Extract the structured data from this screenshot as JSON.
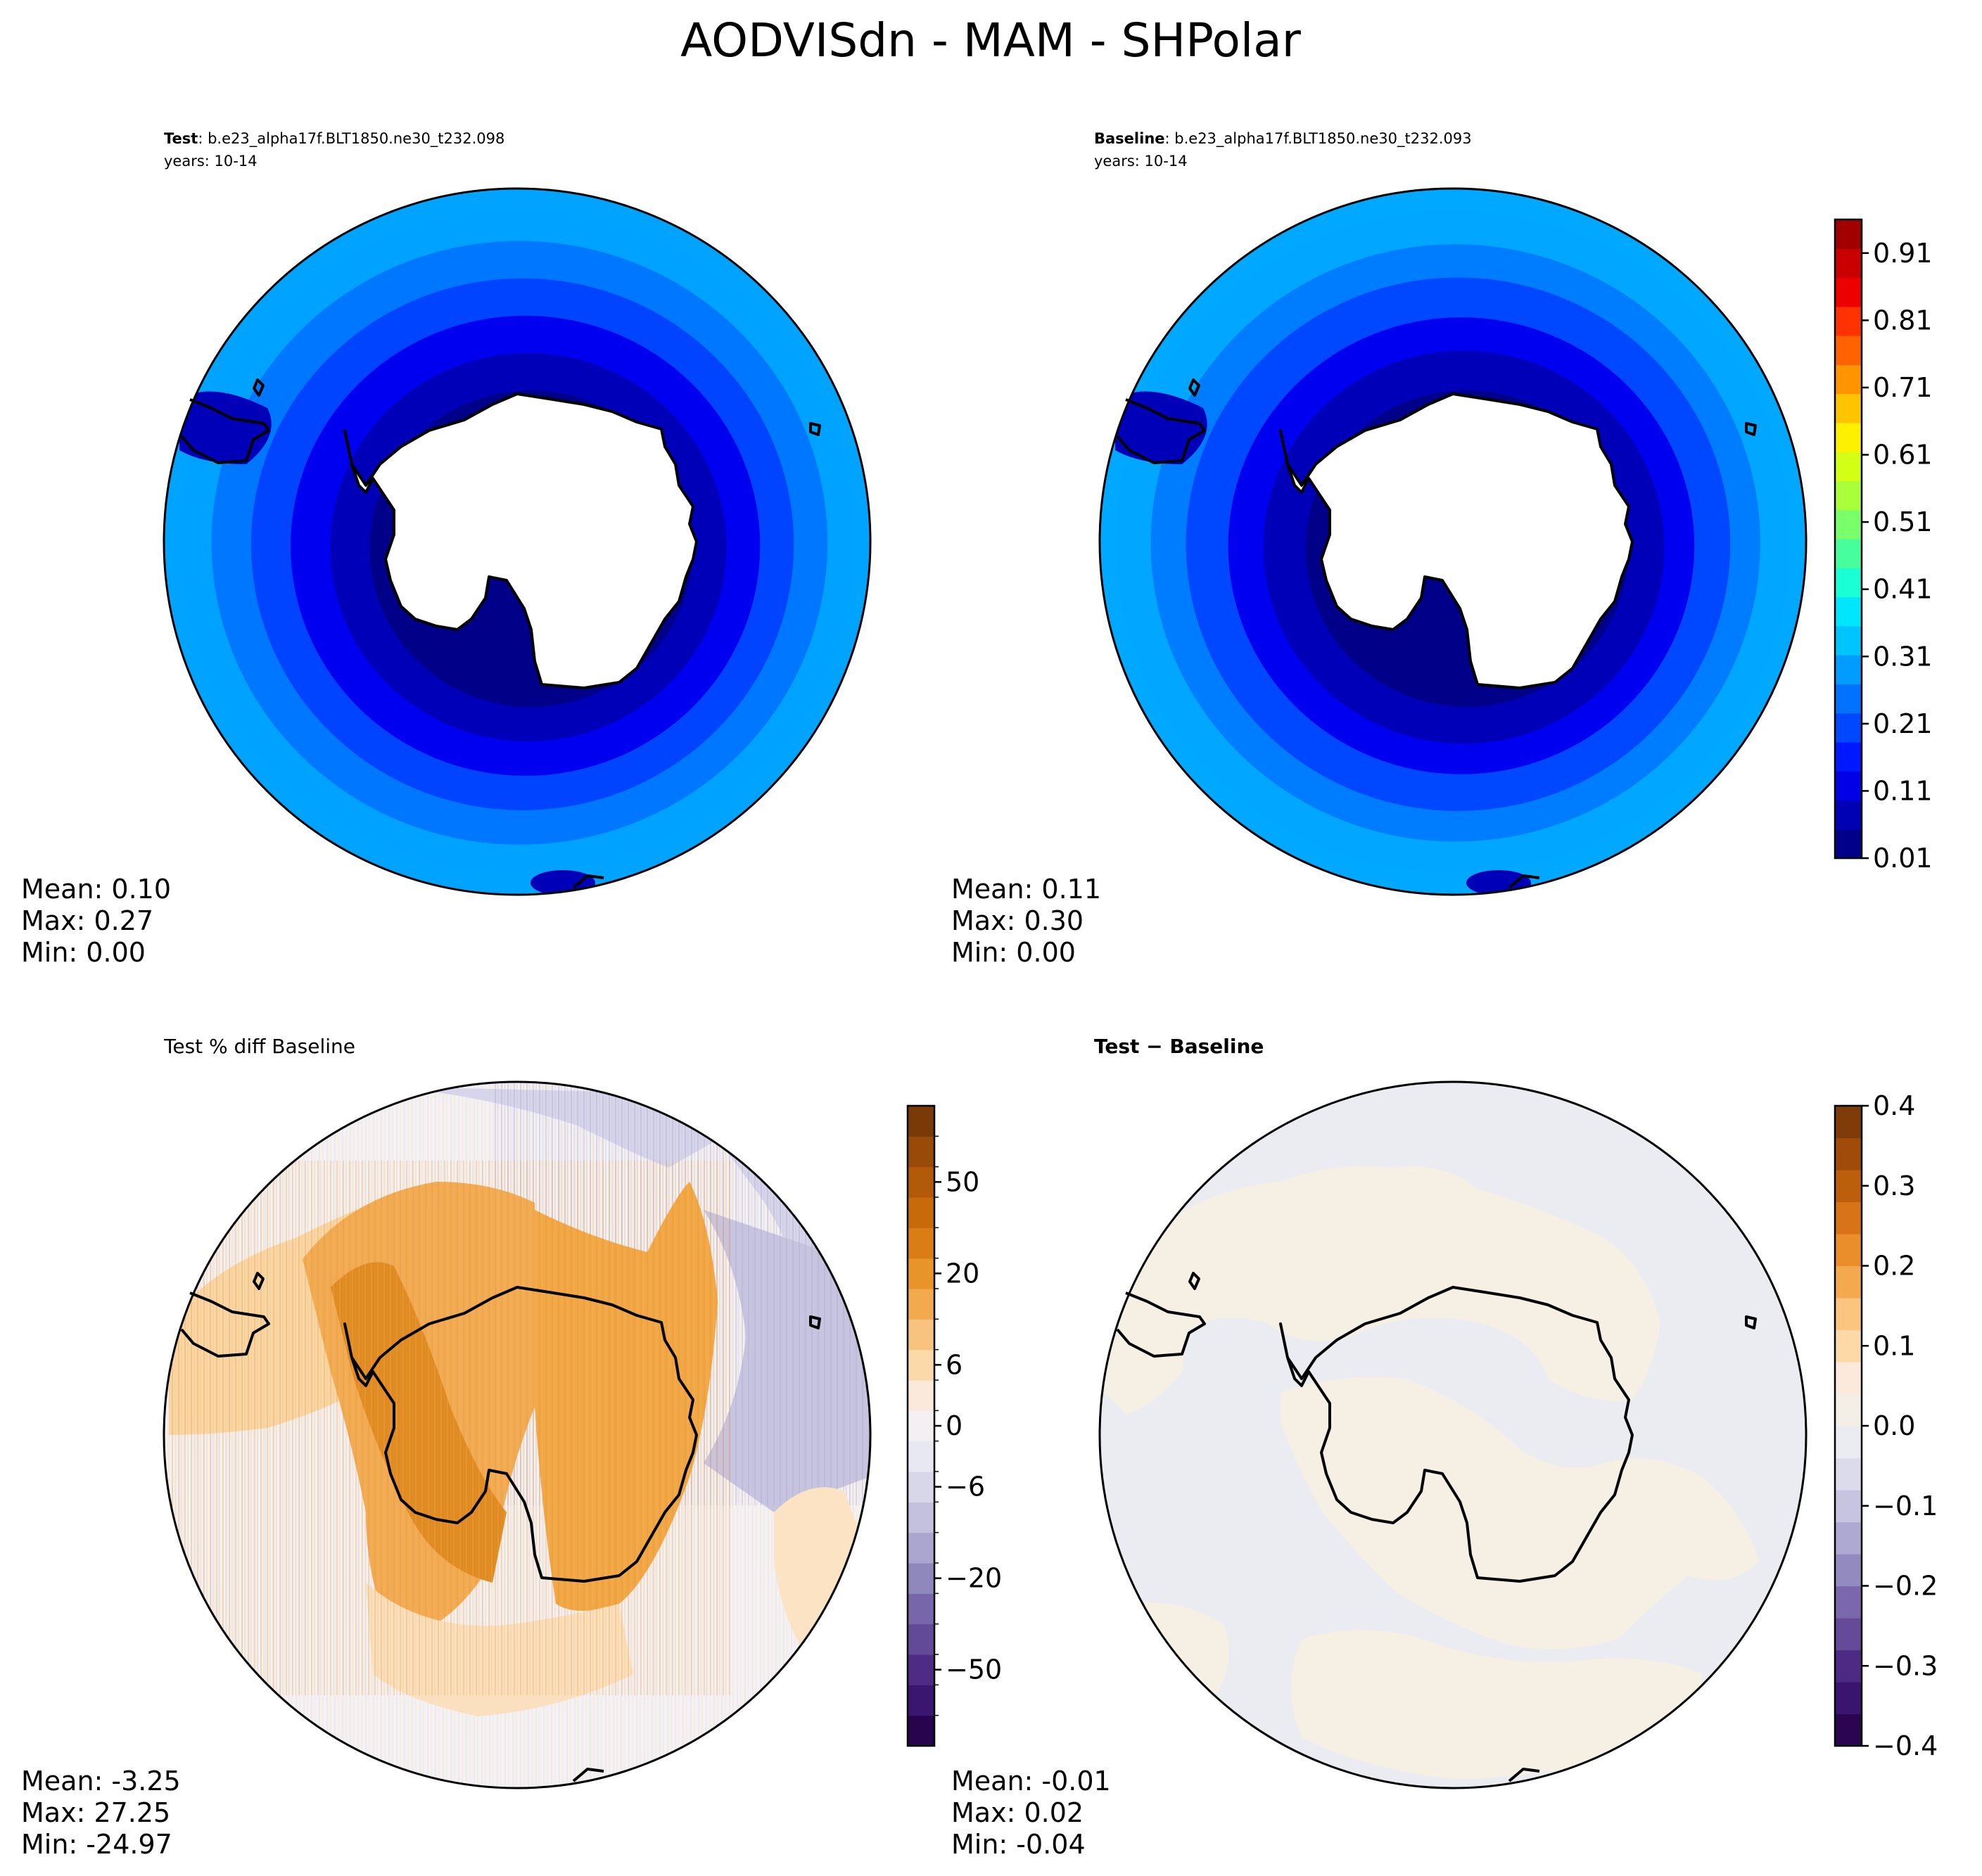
{
  "figure": {
    "title": "AODVISdn - MAM - SHPolar"
  },
  "chart_data": [
    {
      "type": "heatmap",
      "panel": "test",
      "label_bold": "Test",
      "label_rest": ": b.e23_alpha17f.BLT1850.ne30_t232.098",
      "years": "years: 10-14",
      "projection": "south polar stereographic",
      "stats": {
        "mean": "Mean:  0.10",
        "max": "Max:  0.27",
        "min": "Min:  0.00"
      },
      "rings": [
        {
          "value": 0.25,
          "color": "#00a2ff"
        },
        {
          "value": 0.21,
          "color": "#0077ff"
        },
        {
          "value": 0.16,
          "color": "#0044ff"
        },
        {
          "value": 0.11,
          "color": "#0000f0"
        },
        {
          "value": 0.06,
          "color": "#0000b8"
        },
        {
          "value": 0.01,
          "color": "#000088"
        }
      ]
    },
    {
      "type": "heatmap",
      "panel": "baseline",
      "label_bold": "Baseline",
      "label_rest": ": b.e23_alpha17f.BLT1850.ne30_t232.093",
      "years": "years: 10-14",
      "projection": "south polar stereographic",
      "stats": {
        "mean": "Mean:  0.11",
        "max": "Max:  0.30",
        "min": "Min:  0.00"
      },
      "rings": [
        {
          "value": 0.28,
          "color": "#00a6ff"
        },
        {
          "value": 0.23,
          "color": "#007cff"
        },
        {
          "value": 0.18,
          "color": "#0048ff"
        },
        {
          "value": 0.12,
          "color": "#0000f0"
        },
        {
          "value": 0.07,
          "color": "#0000b8"
        },
        {
          "value": 0.01,
          "color": "#000088"
        }
      ],
      "colorbar": {
        "min": 0.01,
        "max": 0.96,
        "ticks": [
          "0.01",
          "0.11",
          "0.21",
          "0.31",
          "0.41",
          "0.51",
          "0.61",
          "0.71",
          "0.81",
          "0.91"
        ],
        "tick_values": [
          0.01,
          0.11,
          0.21,
          0.31,
          0.41,
          0.51,
          0.61,
          0.71,
          0.81,
          0.91
        ],
        "colors": [
          "#00008a",
          "#0000b4",
          "#0000e6",
          "#0018ff",
          "#0048ff",
          "#0072ff",
          "#009cff",
          "#00c4ff",
          "#00e6ff",
          "#1affd4",
          "#46ff9c",
          "#78ff6a",
          "#a8ff3a",
          "#d2ff14",
          "#fff000",
          "#ffc400",
          "#ff9400",
          "#ff6200",
          "#ff3200",
          "#ee0000",
          "#c80000",
          "#a00000"
        ]
      }
    },
    {
      "type": "heatmap",
      "panel": "pct_diff",
      "label": "Test % diff Baseline",
      "projection": "south polar stereographic",
      "stats": {
        "mean": "Mean: -3.25",
        "max": "Max: 27.25",
        "min": "Min: -24.97"
      },
      "colorbar": {
        "ticks": [
          "50",
          "20",
          "6",
          "0",
          "−6",
          "−20",
          "−50"
        ],
        "tick_values": [
          50,
          20,
          6,
          0,
          -6,
          -20,
          -50
        ],
        "colors_top_to_bottom": [
          "#7a3a08",
          "#9a4a08",
          "#b35a08",
          "#c86a0a",
          "#d97d14",
          "#e99428",
          "#f3aa4e",
          "#f8c37e",
          "#fcd9a8",
          "#fbeadb",
          "#f3eff2",
          "#e8e8f2",
          "#d8d7ea",
          "#c3c1de",
          "#aaa6cf",
          "#8f88bd",
          "#7866aa",
          "#634a98",
          "#4e2b85",
          "#3b1670",
          "#28044f"
        ]
      }
    },
    {
      "type": "heatmap",
      "panel": "abs_diff",
      "label_bold": "Test − Baseline",
      "projection": "south polar stereographic",
      "stats": {
        "mean": "Mean: -0.01",
        "max": "Max:  0.02",
        "min": "Min: -0.04"
      },
      "colorbar": {
        "min": -0.4,
        "max": 0.4,
        "ticks": [
          "0.4",
          "0.3",
          "0.2",
          "0.1",
          "0.0",
          "−0.1",
          "−0.2",
          "−0.3",
          "−0.4"
        ],
        "tick_values": [
          0.4,
          0.3,
          0.2,
          0.1,
          0.0,
          -0.1,
          -0.2,
          -0.3,
          -0.4
        ],
        "colors_top_to_bottom": [
          "#7f3b08",
          "#a04c08",
          "#bd5e0c",
          "#d87417",
          "#ea8e2c",
          "#f5a94f",
          "#fbc47f",
          "#fdd9a8",
          "#fbeadb",
          "#f3eee6",
          "#ebebf2",
          "#dcdbeb",
          "#c6c4e0",
          "#aea9d2",
          "#938bc0",
          "#7b68ac",
          "#644a98",
          "#4d2b85",
          "#3a156f",
          "#2b0550"
        ]
      }
    }
  ]
}
